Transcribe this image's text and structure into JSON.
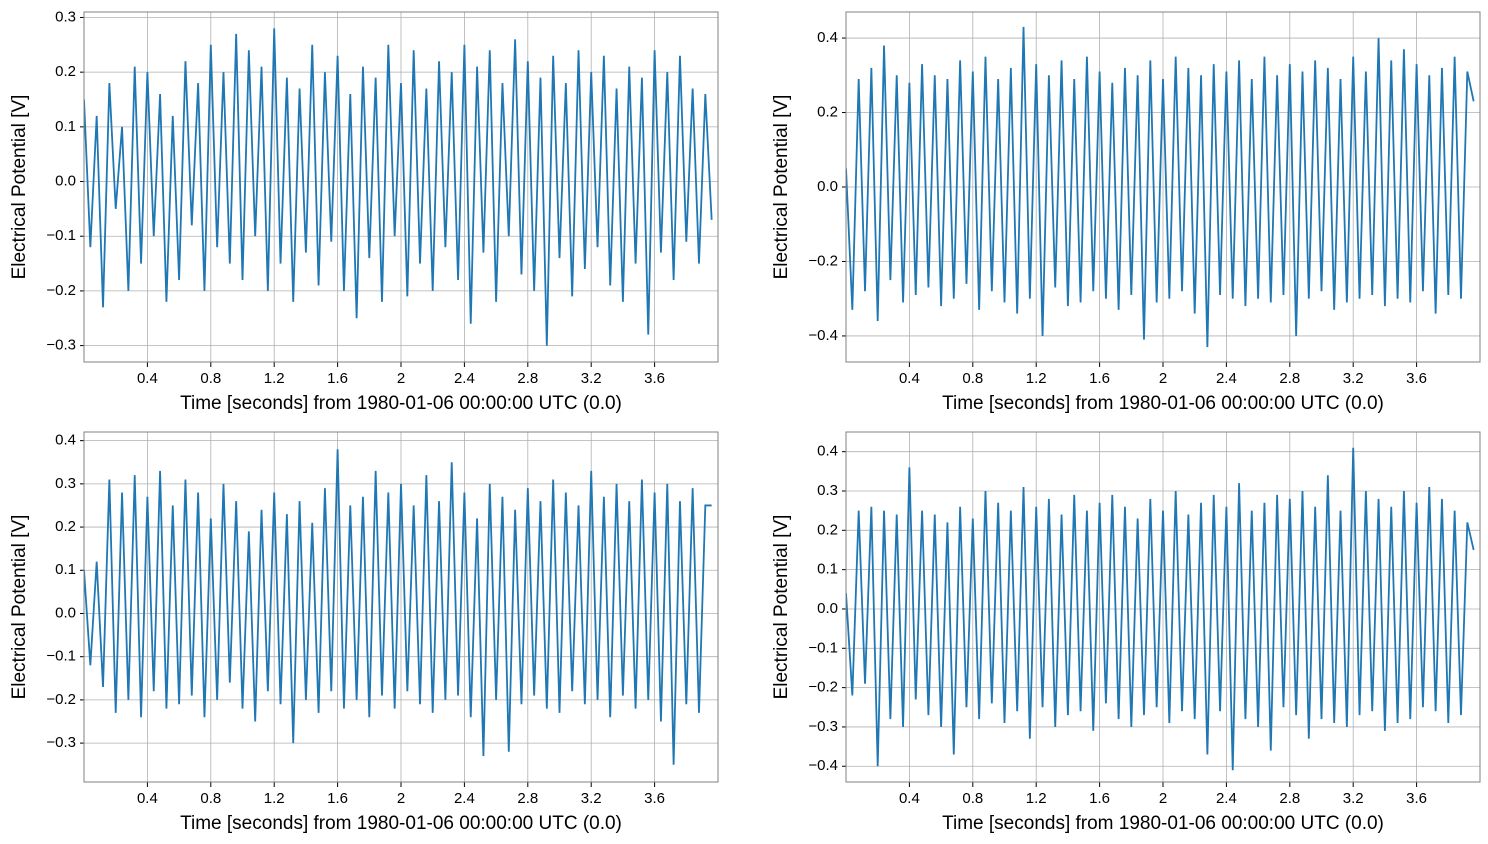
{
  "chart_data": [
    {
      "type": "line",
      "xlabel": "Time [seconds] from 1980-01-06 00:00:00 UTC (0.0)",
      "ylabel": "Electrical Potential [V]",
      "color": "#1f77b4",
      "grid": true,
      "xlim": [
        0,
        4
      ],
      "xticks": [
        0.4,
        0.8,
        1.2,
        1.6,
        2,
        2.4,
        2.8,
        3.2,
        3.6
      ],
      "ylim": [
        -0.33,
        0.31
      ],
      "yticks": [
        {
          "value": -0.3,
          "label": "−0.3"
        },
        {
          "value": -0.2,
          "label": "−0.2"
        },
        {
          "value": -0.1,
          "label": "−0.1"
        },
        {
          "value": 0,
          "label": "0.0"
        },
        0.1,
        0.2,
        0.3
      ],
      "x": [
        0,
        0.04,
        0.08,
        0.12,
        0.16,
        0.2,
        0.24,
        0.28,
        0.32,
        0.36,
        0.4,
        0.44,
        0.48,
        0.52,
        0.56,
        0.6,
        0.64,
        0.68,
        0.72,
        0.76,
        0.8,
        0.84,
        0.88,
        0.92,
        0.96,
        1,
        1.04,
        1.08,
        1.12,
        1.16,
        1.2,
        1.24,
        1.28,
        1.32,
        1.36,
        1.4,
        1.44,
        1.48,
        1.52,
        1.56,
        1.6,
        1.64,
        1.68,
        1.72,
        1.76,
        1.8,
        1.84,
        1.88,
        1.92,
        1.96,
        2,
        2.04,
        2.08,
        2.12,
        2.16,
        2.2,
        2.24,
        2.28,
        2.32,
        2.36,
        2.4,
        2.44,
        2.48,
        2.52,
        2.56,
        2.6,
        2.64,
        2.68,
        2.72,
        2.76,
        2.8,
        2.84,
        2.88,
        2.92,
        2.96,
        3,
        3.04,
        3.08,
        3.12,
        3.16,
        3.2,
        3.24,
        3.28,
        3.32,
        3.36,
        3.4,
        3.44,
        3.48,
        3.52,
        3.56,
        3.6,
        3.64,
        3.68,
        3.72,
        3.76,
        3.8,
        3.84,
        3.88,
        3.92,
        3.96
      ],
      "values": [
        0.15,
        -0.12,
        0.12,
        -0.23,
        0.18,
        -0.05,
        0.1,
        -0.2,
        0.21,
        -0.15,
        0.2,
        -0.1,
        0.16,
        -0.22,
        0.12,
        -0.18,
        0.22,
        -0.08,
        0.18,
        -0.2,
        0.25,
        -0.12,
        0.2,
        -0.15,
        0.27,
        -0.18,
        0.24,
        -0.1,
        0.21,
        -0.2,
        0.28,
        -0.15,
        0.19,
        -0.22,
        0.17,
        -0.13,
        0.25,
        -0.19,
        0.2,
        -0.11,
        0.23,
        -0.2,
        0.16,
        -0.25,
        0.21,
        -0.14,
        0.19,
        -0.22,
        0.25,
        -0.1,
        0.18,
        -0.21,
        0.24,
        -0.15,
        0.17,
        -0.2,
        0.22,
        -0.12,
        0.2,
        -0.18,
        0.25,
        -0.26,
        0.21,
        -0.13,
        0.24,
        -0.22,
        0.18,
        -0.1,
        0.26,
        -0.17,
        0.22,
        -0.2,
        0.19,
        -0.3,
        0.23,
        -0.14,
        0.18,
        -0.21,
        0.24,
        -0.16,
        0.2,
        -0.12,
        0.23,
        -0.19,
        0.17,
        -0.22,
        0.21,
        -0.15,
        0.19,
        -0.28,
        0.24,
        -0.13,
        0.2,
        -0.18,
        0.23,
        -0.11,
        0.17,
        -0.15,
        0.16,
        -0.07
      ]
    },
    {
      "type": "line",
      "xlabel": "Time [seconds] from 1980-01-06 00:00:00 UTC (0.0)",
      "ylabel": "Electrical Potential [V]",
      "color": "#1f77b4",
      "grid": true,
      "xlim": [
        0,
        4
      ],
      "xticks": [
        0.4,
        0.8,
        1.2,
        1.6,
        2,
        2.4,
        2.8,
        3.2,
        3.6
      ],
      "ylim": [
        -0.47,
        0.47
      ],
      "yticks": [
        {
          "value": -0.4,
          "label": "−0.4"
        },
        {
          "value": -0.2,
          "label": "−0.2"
        },
        {
          "value": 0,
          "label": "0.0"
        },
        0.2,
        0.4
      ],
      "x": [
        0,
        0.04,
        0.08,
        0.12,
        0.16,
        0.2,
        0.24,
        0.28,
        0.32,
        0.36,
        0.4,
        0.44,
        0.48,
        0.52,
        0.56,
        0.6,
        0.64,
        0.68,
        0.72,
        0.76,
        0.8,
        0.84,
        0.88,
        0.92,
        0.96,
        1,
        1.04,
        1.08,
        1.12,
        1.16,
        1.2,
        1.24,
        1.28,
        1.32,
        1.36,
        1.4,
        1.44,
        1.48,
        1.52,
        1.56,
        1.6,
        1.64,
        1.68,
        1.72,
        1.76,
        1.8,
        1.84,
        1.88,
        1.92,
        1.96,
        2,
        2.04,
        2.08,
        2.12,
        2.16,
        2.2,
        2.24,
        2.28,
        2.32,
        2.36,
        2.4,
        2.44,
        2.48,
        2.52,
        2.56,
        2.6,
        2.64,
        2.68,
        2.72,
        2.76,
        2.8,
        2.84,
        2.88,
        2.92,
        2.96,
        3,
        3.04,
        3.08,
        3.12,
        3.16,
        3.2,
        3.24,
        3.28,
        3.32,
        3.36,
        3.4,
        3.44,
        3.48,
        3.52,
        3.56,
        3.6,
        3.64,
        3.68,
        3.72,
        3.76,
        3.8,
        3.84,
        3.88,
        3.92,
        3.96
      ],
      "values": [
        0.05,
        -0.33,
        0.29,
        -0.28,
        0.32,
        -0.36,
        0.38,
        -0.25,
        0.3,
        -0.31,
        0.28,
        -0.29,
        0.33,
        -0.27,
        0.3,
        -0.32,
        0.29,
        -0.3,
        0.34,
        -0.26,
        0.31,
        -0.33,
        0.35,
        -0.28,
        0.29,
        -0.31,
        0.32,
        -0.34,
        0.43,
        -0.3,
        0.33,
        -0.4,
        0.3,
        -0.27,
        0.34,
        -0.32,
        0.29,
        -0.31,
        0.35,
        -0.28,
        0.31,
        -0.3,
        0.28,
        -0.33,
        0.32,
        -0.29,
        0.3,
        -0.41,
        0.34,
        -0.31,
        0.29,
        -0.3,
        0.35,
        -0.28,
        0.32,
        -0.34,
        0.3,
        -0.43,
        0.33,
        -0.29,
        0.31,
        -0.3,
        0.34,
        -0.32,
        0.29,
        -0.3,
        0.35,
        -0.31,
        0.3,
        -0.29,
        0.33,
        -0.4,
        0.31,
        -0.3,
        0.34,
        -0.28,
        0.32,
        -0.33,
        0.29,
        -0.31,
        0.35,
        -0.3,
        0.31,
        -0.29,
        0.4,
        -0.32,
        0.34,
        -0.3,
        0.37,
        -0.31,
        0.33,
        -0.28,
        0.3,
        -0.34,
        0.32,
        -0.29,
        0.35,
        -0.3,
        0.31,
        0.23
      ]
    },
    {
      "type": "line",
      "xlabel": "Time [seconds] from 1980-01-06 00:00:00 UTC (0.0)",
      "ylabel": "Electrical Potential [V]",
      "color": "#1f77b4",
      "grid": true,
      "xlim": [
        0,
        4
      ],
      "xticks": [
        0.4,
        0.8,
        1.2,
        1.6,
        2,
        2.4,
        2.8,
        3.2,
        3.6
      ],
      "ylim": [
        -0.39,
        0.42
      ],
      "yticks": [
        {
          "value": -0.3,
          "label": "−0.3"
        },
        {
          "value": -0.2,
          "label": "−0.2"
        },
        {
          "value": -0.1,
          "label": "−0.1"
        },
        {
          "value": 0,
          "label": "0.0"
        },
        0.1,
        0.2,
        0.3,
        0.4
      ],
      "x": [
        0,
        0.04,
        0.08,
        0.12,
        0.16,
        0.2,
        0.24,
        0.28,
        0.32,
        0.36,
        0.4,
        0.44,
        0.48,
        0.52,
        0.56,
        0.6,
        0.64,
        0.68,
        0.72,
        0.76,
        0.8,
        0.84,
        0.88,
        0.92,
        0.96,
        1,
        1.04,
        1.08,
        1.12,
        1.16,
        1.2,
        1.24,
        1.28,
        1.32,
        1.36,
        1.4,
        1.44,
        1.48,
        1.52,
        1.56,
        1.6,
        1.64,
        1.68,
        1.72,
        1.76,
        1.8,
        1.84,
        1.88,
        1.92,
        1.96,
        2,
        2.04,
        2.08,
        2.12,
        2.16,
        2.2,
        2.24,
        2.28,
        2.32,
        2.36,
        2.4,
        2.44,
        2.48,
        2.52,
        2.56,
        2.6,
        2.64,
        2.68,
        2.72,
        2.76,
        2.8,
        2.84,
        2.88,
        2.92,
        2.96,
        3,
        3.04,
        3.08,
        3.12,
        3.16,
        3.2,
        3.24,
        3.28,
        3.32,
        3.36,
        3.4,
        3.44,
        3.48,
        3.52,
        3.56,
        3.6,
        3.64,
        3.68,
        3.72,
        3.76,
        3.8,
        3.84,
        3.88,
        3.92,
        3.96
      ],
      "values": [
        0.1,
        -0.12,
        0.12,
        -0.17,
        0.31,
        -0.23,
        0.28,
        -0.2,
        0.32,
        -0.24,
        0.27,
        -0.18,
        0.33,
        -0.22,
        0.25,
        -0.21,
        0.31,
        -0.19,
        0.28,
        -0.24,
        0.22,
        -0.2,
        0.3,
        -0.16,
        0.26,
        -0.22,
        0.19,
        -0.25,
        0.24,
        -0.18,
        0.28,
        -0.21,
        0.23,
        -0.3,
        0.26,
        -0.2,
        0.21,
        -0.23,
        0.29,
        -0.18,
        0.38,
        -0.22,
        0.25,
        -0.2,
        0.27,
        -0.24,
        0.33,
        -0.19,
        0.28,
        -0.22,
        0.3,
        -0.18,
        0.25,
        -0.21,
        0.32,
        -0.23,
        0.26,
        -0.2,
        0.35,
        -0.19,
        0.28,
        -0.24,
        0.22,
        -0.33,
        0.3,
        -0.2,
        0.27,
        -0.32,
        0.24,
        -0.21,
        0.29,
        -0.19,
        0.26,
        -0.22,
        0.31,
        -0.23,
        0.28,
        -0.18,
        0.25,
        -0.21,
        0.33,
        -0.2,
        0.27,
        -0.24,
        0.3,
        -0.19,
        0.26,
        -0.22,
        0.31,
        -0.2,
        0.28,
        -0.25,
        0.3,
        -0.35,
        0.26,
        -0.21,
        0.29,
        -0.23,
        0.25,
        0.25
      ]
    },
    {
      "type": "line",
      "xlabel": "Time [seconds] from 1980-01-06 00:00:00 UTC (0.0)",
      "ylabel": "Electrical Potential [V]",
      "color": "#1f77b4",
      "grid": true,
      "xlim": [
        0,
        4
      ],
      "xticks": [
        0.4,
        0.8,
        1.2,
        1.6,
        2,
        2.4,
        2.8,
        3.2,
        3.6
      ],
      "ylim": [
        -0.44,
        0.45
      ],
      "yticks": [
        {
          "value": -0.4,
          "label": "−0.4"
        },
        {
          "value": -0.3,
          "label": "−0.3"
        },
        {
          "value": -0.2,
          "label": "−0.2"
        },
        {
          "value": -0.1,
          "label": "−0.1"
        },
        {
          "value": 0,
          "label": "0.0"
        },
        0.1,
        0.2,
        0.3,
        0.4
      ],
      "x": [
        0,
        0.04,
        0.08,
        0.12,
        0.16,
        0.2,
        0.24,
        0.28,
        0.32,
        0.36,
        0.4,
        0.44,
        0.48,
        0.52,
        0.56,
        0.6,
        0.64,
        0.68,
        0.72,
        0.76,
        0.8,
        0.84,
        0.88,
        0.92,
        0.96,
        1,
        1.04,
        1.08,
        1.12,
        1.16,
        1.2,
        1.24,
        1.28,
        1.32,
        1.36,
        1.4,
        1.44,
        1.48,
        1.52,
        1.56,
        1.6,
        1.64,
        1.68,
        1.72,
        1.76,
        1.8,
        1.84,
        1.88,
        1.92,
        1.96,
        2,
        2.04,
        2.08,
        2.12,
        2.16,
        2.2,
        2.24,
        2.28,
        2.32,
        2.36,
        2.4,
        2.44,
        2.48,
        2.52,
        2.56,
        2.6,
        2.64,
        2.68,
        2.72,
        2.76,
        2.8,
        2.84,
        2.88,
        2.92,
        2.96,
        3,
        3.04,
        3.08,
        3.12,
        3.16,
        3.2,
        3.24,
        3.28,
        3.32,
        3.36,
        3.4,
        3.44,
        3.48,
        3.52,
        3.56,
        3.6,
        3.64,
        3.68,
        3.72,
        3.76,
        3.8,
        3.84,
        3.88,
        3.92,
        3.96
      ],
      "values": [
        0.04,
        -0.22,
        0.25,
        -0.19,
        0.26,
        -0.4,
        0.25,
        -0.28,
        0.24,
        -0.3,
        0.36,
        -0.23,
        0.25,
        -0.27,
        0.24,
        -0.3,
        0.22,
        -0.37,
        0.26,
        -0.25,
        0.23,
        -0.28,
        0.3,
        -0.24,
        0.27,
        -0.29,
        0.25,
        -0.26,
        0.31,
        -0.33,
        0.26,
        -0.25,
        0.28,
        -0.3,
        0.24,
        -0.27,
        0.29,
        -0.26,
        0.25,
        -0.31,
        0.27,
        -0.24,
        0.29,
        -0.28,
        0.26,
        -0.3,
        0.23,
        -0.27,
        0.28,
        -0.25,
        0.25,
        -0.29,
        0.3,
        -0.26,
        0.24,
        -0.28,
        0.27,
        -0.37,
        0.29,
        -0.26,
        0.26,
        -0.41,
        0.32,
        -0.28,
        0.25,
        -0.3,
        0.27,
        -0.36,
        0.29,
        -0.25,
        0.28,
        -0.27,
        0.3,
        -0.33,
        0.26,
        -0.28,
        0.34,
        -0.29,
        0.25,
        -0.3,
        0.41,
        -0.27,
        0.3,
        -0.26,
        0.28,
        -0.31,
        0.26,
        -0.29,
        0.3,
        -0.28,
        0.27,
        -0.25,
        0.31,
        -0.26,
        0.28,
        -0.29,
        0.25,
        -0.27,
        0.22,
        0.15
      ]
    }
  ]
}
